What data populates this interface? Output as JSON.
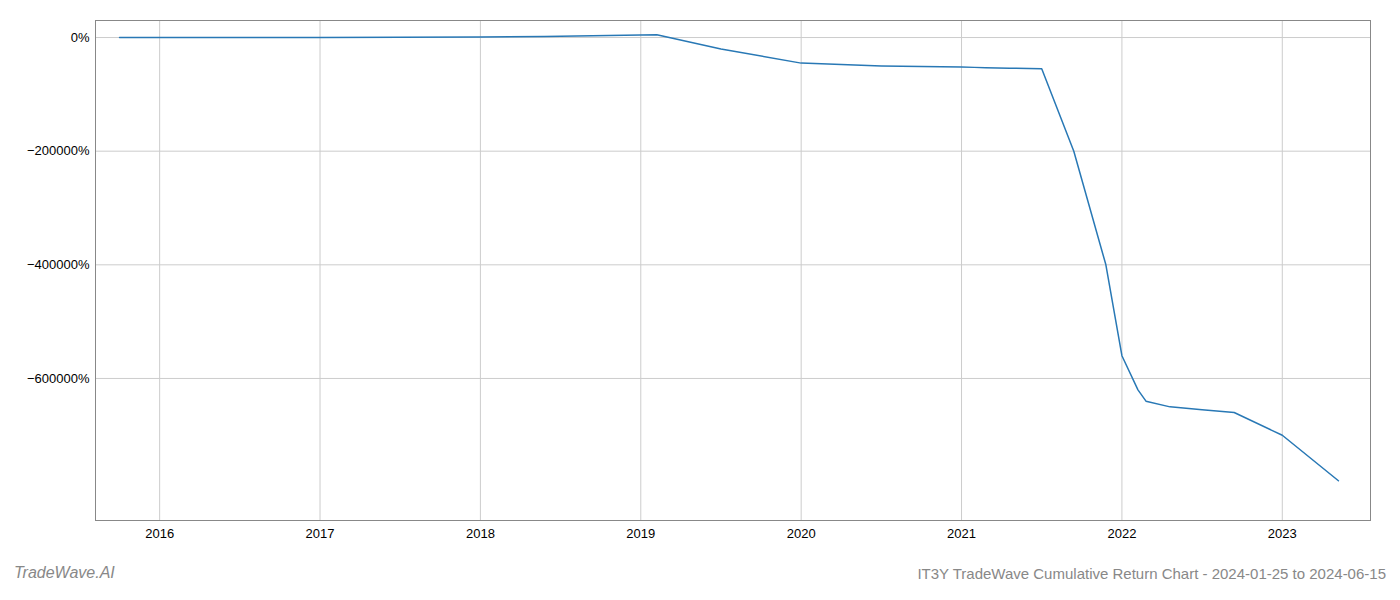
{
  "chart_data": {
    "type": "line",
    "title": "IT3Y TradeWave Cumulative Return Chart - 2024-01-25 to 2024-06-15",
    "annotations": [
      "TradeWave.AI"
    ],
    "color": "#2878b5",
    "grid": true,
    "xlim": [
      2015.6,
      2023.55
    ],
    "ylim": [
      -850000,
      30000
    ],
    "xticks": [
      2016,
      2017,
      2018,
      2019,
      2020,
      2021,
      2022,
      2023
    ],
    "yticks": [
      {
        "value": 0,
        "label": "0%"
      },
      {
        "value": -200000,
        "label": "−200000%"
      },
      {
        "value": -400000,
        "label": "−400000%"
      },
      {
        "value": -600000,
        "label": "−600000%"
      }
    ],
    "x": [
      2015.75,
      2016.0,
      2016.5,
      2017.0,
      2017.5,
      2018.0,
      2018.4,
      2018.8,
      2019.1,
      2019.5,
      2020.0,
      2020.5,
      2021.0,
      2021.08,
      2021.15,
      2021.3,
      2021.5,
      2021.7,
      2021.9,
      2022.0,
      2022.1,
      2022.15,
      2022.3,
      2022.5,
      2022.7,
      2023.0,
      2023.35
    ],
    "values": [
      0,
      0,
      100,
      300,
      500,
      1000,
      2000,
      3500,
      5000,
      -20000,
      -45000,
      -50000,
      -52000,
      -52500,
      -53000,
      -54000,
      -55000,
      -200000,
      -400000,
      -560000,
      -620000,
      -640000,
      -650000,
      -655000,
      -660000,
      -700000,
      -780000
    ]
  }
}
